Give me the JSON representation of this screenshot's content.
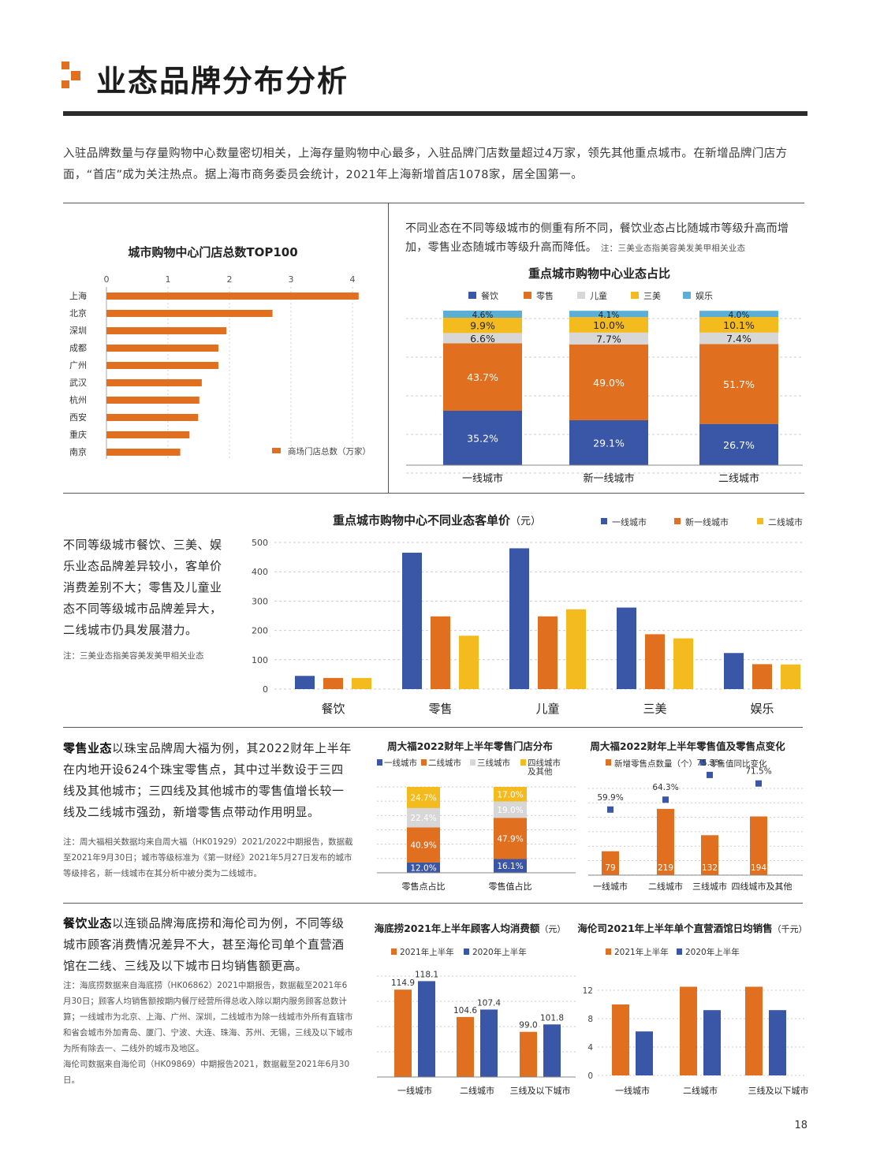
{
  "page": {
    "title": "业态品牌分布分析",
    "intro": "入驻品牌数量与存量购物中心数量密切相关，上海存量购物中心最多，入驻品牌门店数量超过4万家，领先其他重点城市。在新增品牌门店方面，“首店”成为关注热点。据上海市商务委员会统计，2021年上海新增首店1078家，居全国第一。",
    "page_number": "18",
    "accent": "#E07020",
    "blue": "#3A56A6",
    "yellow": "#F3BB1E",
    "gray": "#D7D7D7",
    "light_blue": "#5BAFD6"
  },
  "mix_desc": {
    "text": "不同业态在不同等级城市的侧重有所不同，餐饮业态占比随城市等级升高而增加，零售业态随城市等级升高而降低。",
    "note": "注：三美业态指美容美发美甲相关业态"
  },
  "price_desc": {
    "text": "不同等级城市餐饮、三美、娱乐业态品牌差异较小，客单价消费差别不大；零售及儿童业态不同等级城市品牌差异大，二线城市仍具发展潜力。",
    "note": "注：三美业态指美容美发美甲相关业态"
  },
  "retail_desc": {
    "lead": "零售业态",
    "text": "以珠宝品牌周大福为例，其2022财年上半年在内地开设624个珠宝零售点，其中过半数设于三四线及其他城市；三四线及其他城市的零售值增长较一线及二线城市强劲，新增零售点带动作用明显。",
    "note": "注：周大福相关数据均来自周大福（HK01929）2021/2022中期报告，数据截至2021年9月30日；城市等级标准为《第一财经》2021年5月27日发布的城市等级排名，新一线城市在其分析中被分类为二线城市。"
  },
  "food_desc": {
    "lead": "餐饮业态",
    "text": "以连锁品牌海底捞和海伦司为例，不同等级城市顾客消费情况差异不大，甚至海伦司单个直营酒馆在二线、三线及以下城市日均销售额更高。",
    "note1": "注：海底捞数据来自海底捞（HK06862）2021中期报告，数据截至2021年6月30日；顾客人均销售额按期内餐厅经营所得总收入除以期内服务顾客总数计算；一线城市为北京、上海、广州、深圳，二线城市为除一线城市外所有直辖市和省会城市外加青岛、厦门、宁波、大连、珠海、苏州、无锡，三线及以下城市为所有除去一、二线外的城市及地区。",
    "note2": "海伦司数据来自海伦司（HK09869）中期报告2021，数据截至2021年6月30日。"
  },
  "chart_data": [
    {
      "type": "bar",
      "orientation": "horizontal",
      "title": "城市购物中心门店总数TOP100",
      "categories": [
        "上海",
        "北京",
        "深圳",
        "成都",
        "广州",
        "武汉",
        "杭州",
        "西安",
        "重庆",
        "南京"
      ],
      "series": [
        {
          "name": "商场门店总数（万家）",
          "values": [
            4.1,
            2.7,
            1.95,
            1.82,
            1.82,
            1.55,
            1.51,
            1.49,
            1.35,
            1.2
          ]
        }
      ],
      "xlim": [
        0,
        4
      ],
      "ticks": [
        "0",
        "1",
        "2",
        "3",
        "4"
      ],
      "legend": "bottom-right"
    },
    {
      "type": "bar",
      "stacked": true,
      "title": "重点城市购物中心业态占比",
      "categories": [
        "一线城市",
        "新一线城市",
        "二线城市"
      ],
      "series": [
        {
          "name": "餐饮",
          "values": [
            35.2,
            29.1,
            26.7
          ],
          "labels": [
            "35.2%",
            "29.1%",
            "26.7%"
          ]
        },
        {
          "name": "零售",
          "values": [
            43.7,
            49.0,
            51.7
          ],
          "labels": [
            "43.7%",
            "49.0%",
            "51.7%"
          ]
        },
        {
          "name": "儿童",
          "values": [
            6.6,
            7.7,
            7.4
          ],
          "labels": [
            "6.6%",
            "7.7%",
            "7.4%"
          ]
        },
        {
          "name": "三美",
          "values": [
            9.9,
            10.0,
            10.1
          ],
          "labels": [
            "9.9%",
            "10.0%",
            "10.1%"
          ]
        },
        {
          "name": "娱乐",
          "values": [
            4.6,
            4.1,
            4.0
          ],
          "labels": [
            "4.6%",
            "4.1%",
            "4.0%"
          ]
        }
      ],
      "ylim": [
        0,
        100
      ],
      "legend": "top"
    },
    {
      "type": "bar",
      "title": "重点城市购物中心不同业态客单价",
      "title_unit": "（元）",
      "categories": [
        "餐饮",
        "零售",
        "儿童",
        "三美",
        "娱乐"
      ],
      "series": [
        {
          "name": "一线城市",
          "values": [
            45,
            465,
            480,
            278,
            123
          ]
        },
        {
          "name": "新一线城市",
          "values": [
            38,
            248,
            248,
            187,
            85
          ]
        },
        {
          "name": "二线城市",
          "values": [
            38,
            182,
            272,
            173,
            84
          ]
        }
      ],
      "ylim": [
        0,
        500
      ],
      "ticks": [
        "0",
        "100",
        "200",
        "300",
        "400",
        "500"
      ],
      "legend": "top-right"
    },
    {
      "type": "bar",
      "stacked": true,
      "title": "周大福2022财年上半年零售门店分布",
      "categories": [
        "零售点占比",
        "零售值占比"
      ],
      "series": [
        {
          "name": "一线城市",
          "values": [
            12.0,
            16.1
          ],
          "labels": [
            "12.0%",
            "16.1%"
          ]
        },
        {
          "name": "二线城市",
          "values": [
            40.9,
            47.9
          ],
          "labels": [
            "40.9%",
            "47.9%"
          ]
        },
        {
          "name": "三线城市",
          "values": [
            22.4,
            19.0
          ],
          "labels": [
            "22.4%",
            "19.0%"
          ]
        },
        {
          "name": "四线城市及其他",
          "values": [
            24.7,
            17.0
          ],
          "labels": [
            "24.7%",
            "17.0%"
          ]
        }
      ],
      "legend_extra": "及其他",
      "ylim": [
        0,
        100
      ],
      "legend": "top"
    },
    {
      "type": "bar",
      "title": "周大福2022财年上半年零售值及零售点变化",
      "categories": [
        "一线城市",
        "二线城市",
        "三线城市",
        "四线城市及其他"
      ],
      "series": [
        {
          "name": "新增零售点数量（个）",
          "values": [
            79,
            219,
            132,
            194
          ],
          "labels": [
            "79",
            "219",
            "132",
            "194"
          ]
        },
        {
          "name": "零售值同比变化",
          "values": [
            59.9,
            64.3,
            75.3,
            71.5
          ],
          "labels": [
            "59.9%",
            "64.3%",
            "75.3%",
            "71.5%"
          ],
          "mark": "square"
        }
      ],
      "legend": "top"
    },
    {
      "type": "bar",
      "title": "海底捞2021年上半年顾客人均消费额",
      "title_unit": "（元）",
      "categories": [
        "一线城市",
        "二线城市",
        "三线及以下城市"
      ],
      "series": [
        {
          "name": "2021年上半年",
          "values": [
            114.9,
            104.6,
            99.0
          ],
          "labels": [
            "114.9",
            "104.6",
            "99.0"
          ]
        },
        {
          "name": "2020年上半年",
          "values": [
            118.1,
            107.4,
            101.8
          ],
          "labels": [
            "118.1",
            "107.4",
            "101.8"
          ]
        }
      ],
      "legend": "top"
    },
    {
      "type": "bar",
      "title": "海伦司2021年上半年单个直营酒馆日均销售",
      "title_unit": "（千元）",
      "categories": [
        "一线城市",
        "二线城市",
        "三线及以下城市"
      ],
      "series": [
        {
          "name": "2021年上半年",
          "values": [
            10.0,
            12.5,
            12.5
          ]
        },
        {
          "name": "2020年上半年",
          "values": [
            6.2,
            9.2,
            9.2
          ]
        }
      ],
      "ylim": [
        0,
        12
      ],
      "ticks": [
        "0",
        "4",
        "8",
        "12"
      ],
      "legend": "top"
    }
  ]
}
